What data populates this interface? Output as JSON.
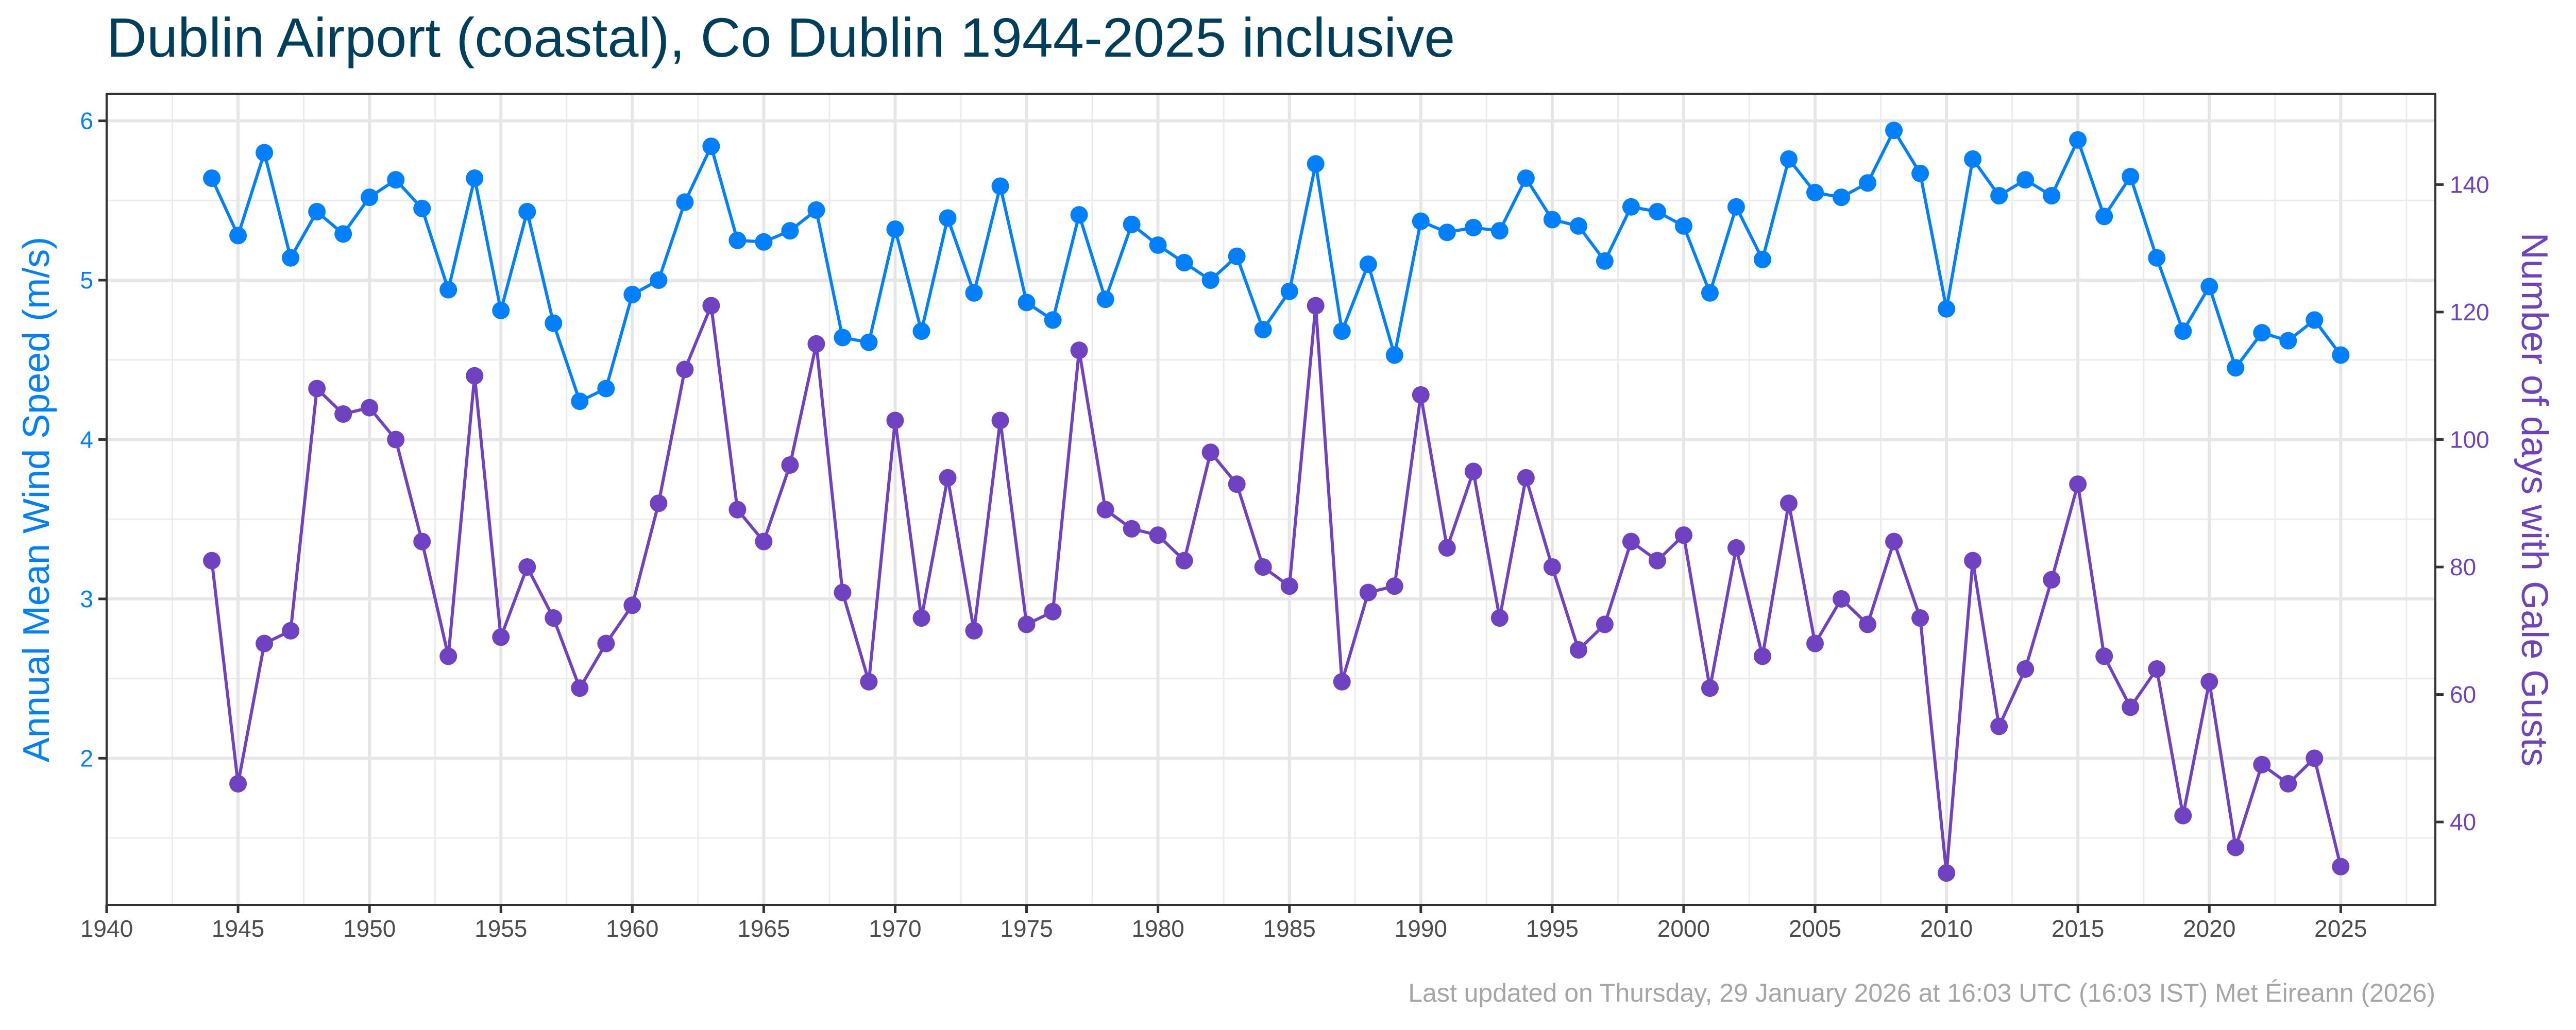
{
  "chart_data": {
    "type": "line",
    "title": "Dublin Airport (coastal), Co Dublin 1944-2025 inclusive",
    "footer": "Last updated on Thursday, 29 January 2026 at 16:03 UTC (16:03 IST) Met Éireann (2026)",
    "xlabel": "",
    "ylabel_left": "Annual Mean Wind Speed (m/s)",
    "ylabel_right": "Number of days with Gale Gusts",
    "xlim": [
      1940,
      2028.6
    ],
    "ylim_left": [
      1.08,
      6.17
    ],
    "ylim_right": [
      27,
      154.25
    ],
    "x_ticks": [
      1940,
      1945,
      1950,
      1955,
      1960,
      1965,
      1970,
      1975,
      1980,
      1985,
      1990,
      1995,
      2000,
      2005,
      2010,
      2015,
      2020,
      2025
    ],
    "y_ticks_left": [
      2,
      3,
      4,
      5,
      6
    ],
    "y_ticks_right": [
      40,
      60,
      80,
      100,
      120,
      140
    ],
    "grid": true,
    "colors": {
      "wind": "#0080ff",
      "gales": "#6f42c1",
      "title": "#003f5c"
    },
    "x": [
      1944,
      1945,
      1946,
      1947,
      1948,
      1949,
      1950,
      1951,
      1952,
      1953,
      1954,
      1955,
      1956,
      1957,
      1958,
      1959,
      1960,
      1961,
      1962,
      1963,
      1964,
      1965,
      1966,
      1967,
      1968,
      1969,
      1970,
      1971,
      1972,
      1973,
      1974,
      1975,
      1976,
      1977,
      1978,
      1979,
      1980,
      1981,
      1982,
      1983,
      1984,
      1985,
      1986,
      1987,
      1988,
      1989,
      1990,
      1991,
      1992,
      1993,
      1994,
      1995,
      1996,
      1997,
      1998,
      1999,
      2000,
      2001,
      2002,
      2003,
      2004,
      2005,
      2006,
      2007,
      2008,
      2009,
      2010,
      2011,
      2012,
      2013,
      2014,
      2015,
      2016,
      2017,
      2018,
      2019,
      2020,
      2021,
      2022,
      2023,
      2024,
      2025
    ],
    "series": [
      {
        "axis": "left",
        "color": "#0080ff",
        "values": [
          5.64,
          5.28,
          5.8,
          5.14,
          5.43,
          5.29,
          5.52,
          5.63,
          5.45,
          4.94,
          5.64,
          4.81,
          5.43,
          4.73,
          4.24,
          4.32,
          4.91,
          5.0,
          5.49,
          5.84,
          5.25,
          5.24,
          5.31,
          5.44,
          4.64,
          4.61,
          5.32,
          4.68,
          5.39,
          4.92,
          5.59,
          4.86,
          4.75,
          5.41,
          4.88,
          5.35,
          5.22,
          5.11,
          5.0,
          5.15,
          4.69,
          4.93,
          5.73,
          4.68,
          5.1,
          4.53,
          5.37,
          5.3,
          5.33,
          5.31,
          5.64,
          5.38,
          5.34,
          5.12,
          5.46,
          5.43,
          5.34,
          4.92,
          5.46,
          5.13,
          5.76,
          5.55,
          5.52,
          5.61,
          5.94,
          5.67,
          4.82,
          5.76,
          5.53,
          5.63,
          5.53,
          5.88,
          5.4,
          5.65,
          5.14,
          4.68,
          4.96,
          4.45,
          4.67,
          4.62,
          4.75,
          4.53
        ]
      },
      {
        "axis": "right",
        "color": "#6f42c1",
        "values": [
          81,
          46,
          68,
          70,
          108,
          104,
          105,
          100,
          84,
          66,
          110,
          69,
          80,
          72,
          61,
          68,
          74,
          90,
          111,
          121,
          89,
          84,
          96,
          115,
          76,
          62,
          103,
          72,
          94,
          70,
          103,
          71,
          73,
          114,
          89,
          86,
          85,
          81,
          98,
          93,
          80,
          77,
          121,
          62,
          76,
          77,
          107,
          83,
          95,
          72,
          94,
          80,
          67,
          71,
          84,
          81,
          85,
          61,
          83,
          66,
          90,
          68,
          75,
          71,
          84,
          72,
          32,
          81,
          55,
          64,
          78,
          93,
          66,
          58,
          64,
          41,
          62,
          36,
          49,
          46,
          50,
          33
        ]
      }
    ]
  }
}
